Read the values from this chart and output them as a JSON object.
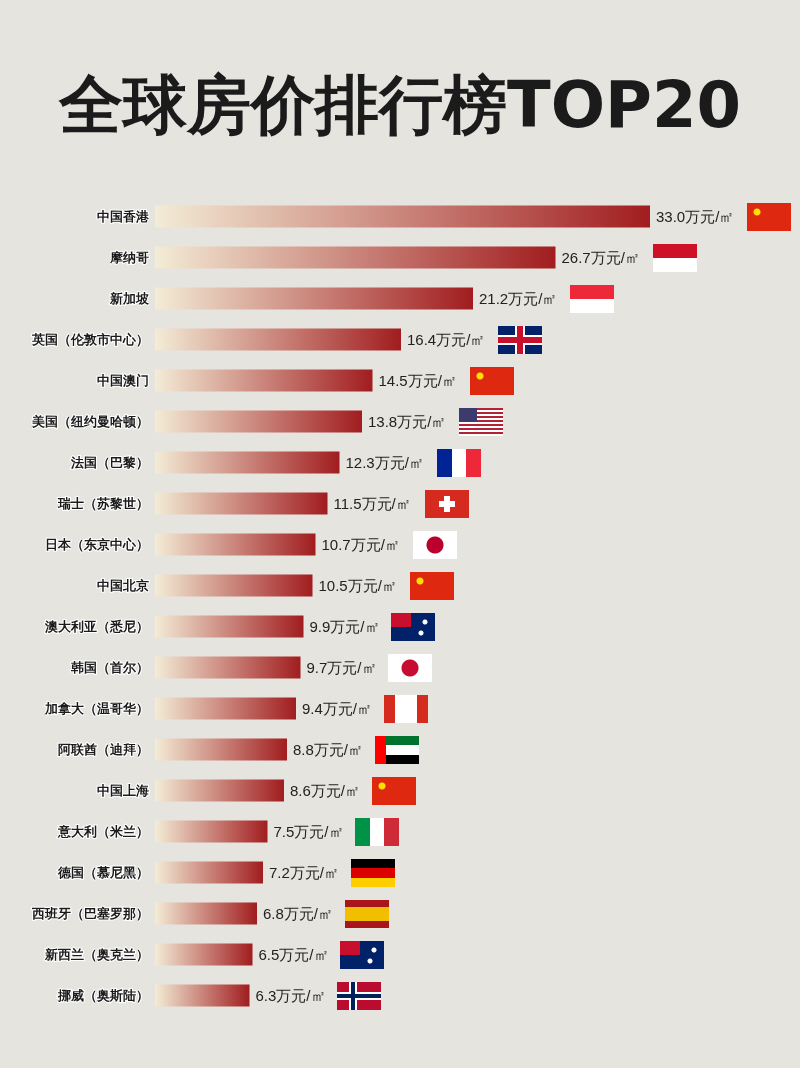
{
  "chart_data": {
    "type": "bar",
    "orientation": "horizontal",
    "title": "全球房价排行榜TOP20",
    "categories": [
      "中国香港",
      "摩纳哥",
      "新加坡",
      "英国（伦敦市中心）",
      "中国澳门",
      "美国（纽约曼哈顿）",
      "法国（巴黎）",
      "瑞士（苏黎世）",
      "日本（东京中心）",
      "中国北京",
      "澳大利亚（悉尼）",
      "韩国（首尔）",
      "加拿大（温哥华）",
      "阿联酋（迪拜）",
      "中国上海",
      "意大利（米兰）",
      "德国（慕尼黑）",
      "西班牙（巴塞罗那）",
      "新西兰（奥克兰）",
      "挪威（奥斯陆）"
    ],
    "values": [
      33.0,
      26.7,
      21.2,
      16.4,
      14.5,
      13.8,
      12.3,
      11.5,
      10.7,
      10.5,
      9.9,
      9.7,
      9.4,
      8.8,
      8.6,
      7.5,
      7.2,
      6.8,
      6.5,
      6.3
    ],
    "value_labels": [
      "33.0万元/㎡",
      "26.7万元/㎡",
      "21.2万元/㎡",
      "16.4万元/㎡",
      "14.5万元/㎡",
      "13.8万元/㎡",
      "12.3万元/㎡",
      "11.5万元/㎡",
      "10.7万元/㎡",
      "10.5万元/㎡",
      "9.9万元/㎡",
      "9.7万元/㎡",
      "9.4万元/㎡",
      "8.8万元/㎡",
      "8.6万元/㎡",
      "7.5万元/㎡",
      "7.2万元/㎡",
      "6.8万元/㎡",
      "6.5万元/㎡",
      "6.3万元/㎡"
    ],
    "color": "#a11d1f"
  }
}
